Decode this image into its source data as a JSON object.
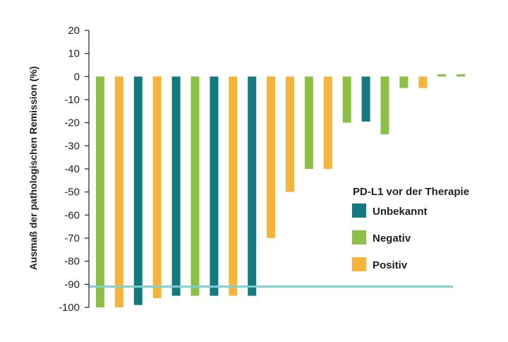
{
  "chart_data": {
    "type": "bar",
    "title": "",
    "xlabel": "",
    "ylabel": "Ausmaß der pathologischen Remission (%)",
    "ylim": [
      -100,
      20
    ],
    "yticks": [
      20,
      10,
      0,
      -10,
      -20,
      -30,
      -40,
      -50,
      -60,
      -70,
      -80,
      -90,
      -100
    ],
    "grid": false,
    "reference_line": {
      "value": -91,
      "color": "#7fcfd4"
    },
    "legend": {
      "title": "PD-L1 vor der Therapie",
      "placement": "right",
      "entries": [
        {
          "key": "unbekannt",
          "label": "Unbekannt",
          "color": "#137b80"
        },
        {
          "key": "negativ",
          "label": "Negativ",
          "color": "#8cbf45"
        },
        {
          "key": "positiv",
          "label": "Positiv",
          "color": "#f6b43b"
        }
      ]
    },
    "bars": [
      {
        "value": -100,
        "group": "negativ"
      },
      {
        "value": -100,
        "group": "positiv"
      },
      {
        "value": -99,
        "group": "unbekannt"
      },
      {
        "value": -96,
        "group": "positiv"
      },
      {
        "value": -95,
        "group": "unbekannt"
      },
      {
        "value": -95,
        "group": "negativ"
      },
      {
        "value": -95,
        "group": "unbekannt"
      },
      {
        "value": -95,
        "group": "positiv"
      },
      {
        "value": -95,
        "group": "unbekannt"
      },
      {
        "value": -70,
        "group": "positiv"
      },
      {
        "value": -50,
        "group": "positiv"
      },
      {
        "value": -40,
        "group": "negativ"
      },
      {
        "value": -40,
        "group": "positiv"
      },
      {
        "value": -20,
        "group": "negativ"
      },
      {
        "value": -19.5,
        "group": "unbekannt"
      },
      {
        "value": -25,
        "group": "negativ"
      },
      {
        "value": -5,
        "group": "negativ"
      },
      {
        "value": -5,
        "group": "positiv"
      },
      {
        "value": 1,
        "group": "negativ"
      },
      {
        "value": 1,
        "group": "negativ"
      }
    ]
  }
}
